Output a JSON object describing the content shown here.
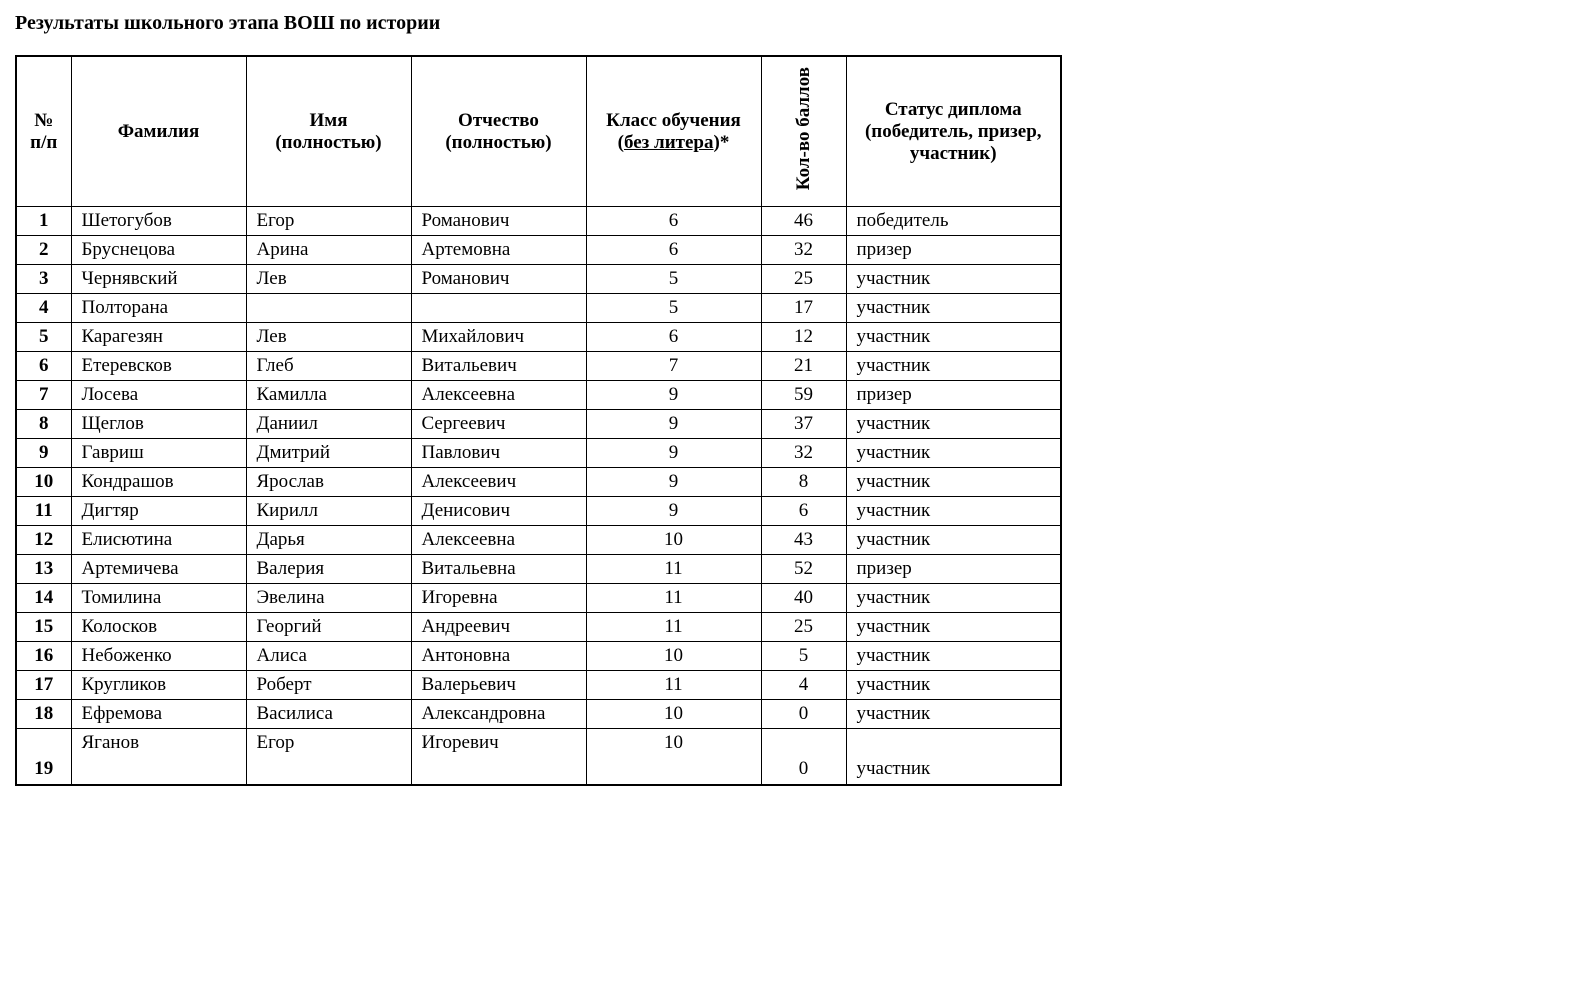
{
  "title": "Результаты школьного этапа ВОШ по истории",
  "table": {
    "headers": {
      "num": "№ п/п",
      "surname": "Фамилия",
      "name": "Имя (полностью)",
      "patronymic": "Отчество (полностью)",
      "class_prefix": "Класс обучения (",
      "class_underline": "без литера",
      "class_suffix": ")*",
      "points": "Кол-во баллов",
      "status": "Статус диплома (победитель, призер, участник)"
    },
    "rows": [
      {
        "num": "1",
        "surname": "Шетогубов",
        "name": "Егор",
        "patronymic": "Романович",
        "class": "6",
        "points": "46",
        "status": "победитель",
        "tall": false
      },
      {
        "num": "2",
        "surname": "Бруснецова",
        "name": "Арина",
        "patronymic": "Артемовна",
        "class": "6",
        "points": "32",
        "status": "призер",
        "tall": false
      },
      {
        "num": "3",
        "surname": "Чернявский",
        "name": "Лев",
        "patronymic": "Романович",
        "class": "5",
        "points": "25",
        "status": "участник",
        "tall": false
      },
      {
        "num": "4",
        "surname": "Полторана",
        "name": "",
        "patronymic": "",
        "class": "5",
        "points": "17",
        "status": "участник",
        "tall": false
      },
      {
        "num": "5",
        "surname": "Карагезян",
        "name": "Лев",
        "patronymic": "Михайлович",
        "class": "6",
        "points": "12",
        "status": "участник",
        "tall": false
      },
      {
        "num": "6",
        "surname": "Етеревсков",
        "name": "Глеб",
        "patronymic": "Витальевич",
        "class": "7",
        "points": "21",
        "status": "участник",
        "tall": false
      },
      {
        "num": "7",
        "surname": "Лосева",
        "name": "Камилла",
        "patronymic": "Алексеевна",
        "class": "9",
        "points": "59",
        "status": "призер",
        "tall": false
      },
      {
        "num": "8",
        "surname": "Щеглов",
        "name": "Даниил",
        "patronymic": "Сергеевич",
        "class": "9",
        "points": "37",
        "status": "участник",
        "tall": false
      },
      {
        "num": "9",
        "surname": "Гавриш",
        "name": "Дмитрий",
        "patronymic": "Павлович",
        "class": "9",
        "points": "32",
        "status": "участник",
        "tall": false
      },
      {
        "num": "10",
        "surname": "Кондрашов",
        "name": "Ярослав",
        "patronymic": "Алексеевич",
        "class": "9",
        "points": "8",
        "status": "участник",
        "tall": false
      },
      {
        "num": "11",
        "surname": "Дигтяр",
        "name": "Кирилл",
        "patronymic": "Денисович",
        "class": "9",
        "points": "6",
        "status": "участник",
        "tall": false
      },
      {
        "num": "12",
        "surname": "Елисютина",
        "name": "Дарья",
        "patronymic": "Алексеевна",
        "class": "10",
        "points": "43",
        "status": "участник",
        "tall": false
      },
      {
        "num": "13",
        "surname": "Артемичева",
        "name": "Валерия",
        "patronymic": "Витальевна",
        "class": "11",
        "points": "52",
        "status": "призер",
        "tall": false
      },
      {
        "num": "14",
        "surname": "Томилина",
        "name": "Эвелина",
        "patronymic": "Игоревна",
        "class": "11",
        "points": "40",
        "status": "участник",
        "tall": false
      },
      {
        "num": "15",
        "surname": "Колосков",
        "name": "Георгий",
        "patronymic": "Андреевич",
        "class": "11",
        "points": "25",
        "status": "участник",
        "tall": false
      },
      {
        "num": "16",
        "surname": "Небоженко",
        "name": "Алиса",
        "patronymic": "Антоновна",
        "class": "10",
        "points": "5",
        "status": "участник",
        "tall": false
      },
      {
        "num": "17",
        "surname": "Кругликов",
        "name": "Роберт",
        "patronymic": "Валерьевич",
        "class": "11",
        "points": "4",
        "status": "участник",
        "tall": false
      },
      {
        "num": "18",
        "surname": "Ефремова",
        "name": "Василиса",
        "patronymic": "Александровна",
        "class": "10",
        "points": "0",
        "status": "участник",
        "tall": false
      },
      {
        "num": "19",
        "surname": "Яганов",
        "name": "Егор",
        "patronymic": "Игоревич",
        "class": "10",
        "points": "0",
        "status": "участник",
        "tall": true
      }
    ],
    "styling": {
      "border_color": "#000000",
      "background_color": "#ffffff",
      "font_family": "Times New Roman",
      "title_fontsize": 20,
      "body_fontsize": 19,
      "col_widths": {
        "num": 55,
        "surname": 175,
        "name": 165,
        "patronymic": 175,
        "class": 175,
        "points": 85,
        "status": 215
      }
    }
  }
}
